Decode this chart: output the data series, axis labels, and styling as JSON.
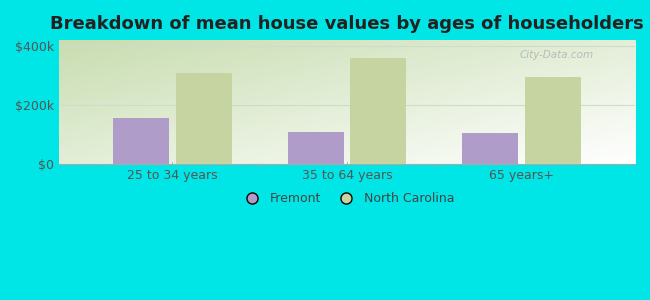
{
  "title": "Breakdown of mean house values by ages of householders",
  "categories": [
    "25 to 34 years",
    "35 to 64 years",
    "65 years+"
  ],
  "fremont_values": [
    155000,
    110000,
    105000
  ],
  "nc_values": [
    310000,
    360000,
    295000
  ],
  "fremont_color": "#b09cc8",
  "nc_color": "#c5d4a0",
  "background_color": "#00e5e5",
  "plot_bg_tl": "#c8ddb0",
  "plot_bg_tr": "#e8f5f0",
  "plot_bg_bl": "#e0f0e8",
  "plot_bg_br": "#ffffff",
  "yticks": [
    0,
    200000,
    400000
  ],
  "ytick_labels": [
    "$0",
    "$200k",
    "$400k"
  ],
  "ylim": [
    0,
    420000
  ],
  "bar_width": 0.32,
  "legend_fremont": "Fremont",
  "legend_nc": "North Carolina",
  "title_fontsize": 13,
  "tick_fontsize": 9,
  "legend_fontsize": 9,
  "grid_color": "#ccddcc",
  "watermark": "City-Data.com"
}
